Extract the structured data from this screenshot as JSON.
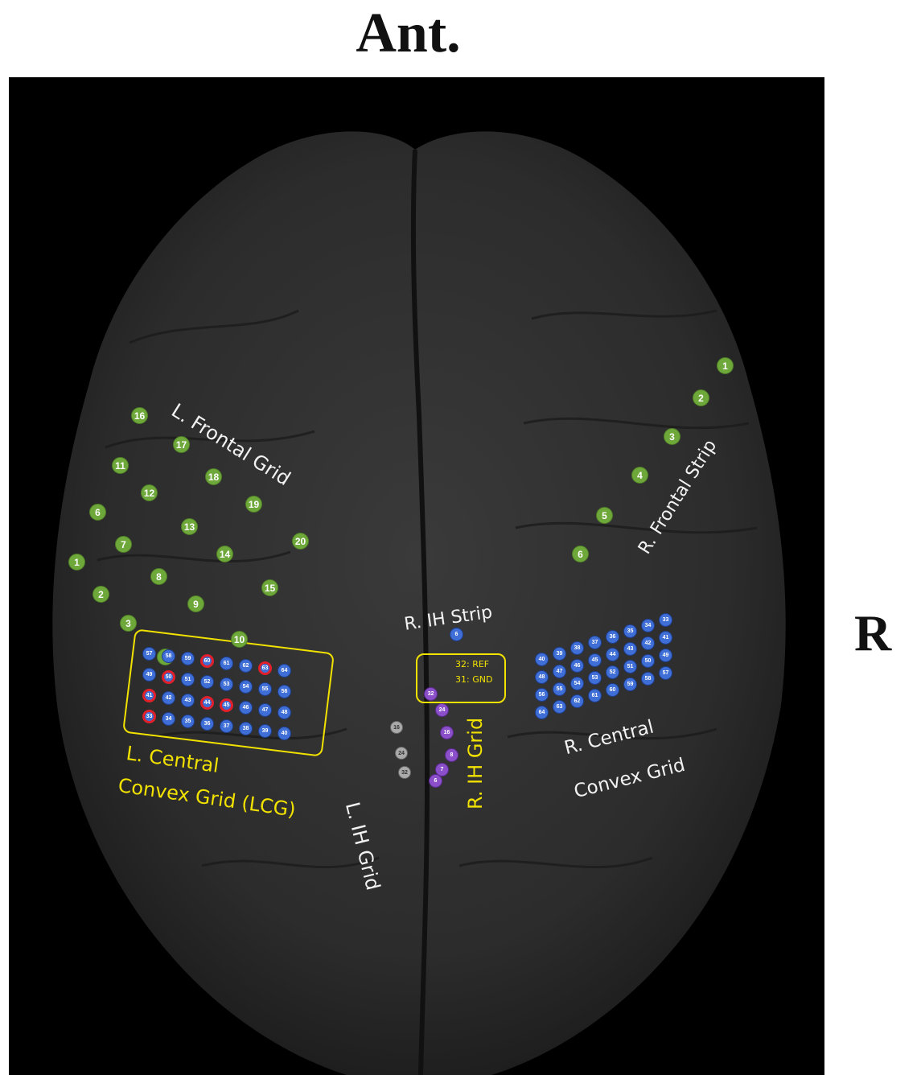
{
  "headings": {
    "anterior": "Ant.",
    "side": "R"
  },
  "labels": {
    "l_frontal_grid": "L. Frontal Grid",
    "r_frontal_strip": "R. Frontal Strip",
    "r_ih_strip": "R. IH Strip",
    "l_ih_grid": "L. IH Grid",
    "r_ih_grid": "R. IH Grid",
    "l_central_line1": "L. Central",
    "l_central_line2": "Convex Grid (LCG)",
    "r_central_line1": "R. Central",
    "r_central_line2": "Convex Grid",
    "ref": "32: REF",
    "gnd": "31: GND"
  },
  "colors": {
    "background": "#000000",
    "brain": "#2e2e2e",
    "yellow": "#f2e200",
    "green_electrode": "#6ea83a",
    "blue_electrode": "#3f6fd6",
    "purple_electrode": "#8a4fc9",
    "highlight_ring": "#e0202a"
  },
  "electrodes": {
    "l_frontal_grid": [
      "16",
      "17",
      "11",
      "18",
      "12",
      "19",
      "6",
      "13",
      "20",
      "7",
      "14",
      "1",
      "8",
      "15",
      "2",
      "9",
      "3",
      "10",
      "4"
    ],
    "r_frontal_strip": [
      "1",
      "2",
      "3",
      "4",
      "5",
      "6"
    ],
    "r_ih_strip": [
      "6"
    ],
    "l_central_convex_grid": [
      "57",
      "58",
      "59",
      "60",
      "61",
      "62",
      "63",
      "64",
      "49",
      "50",
      "51",
      "52",
      "53",
      "54",
      "55",
      "56",
      "41",
      "42",
      "43",
      "44",
      "45",
      "46",
      "47",
      "48",
      "33",
      "34",
      "35",
      "36",
      "37",
      "38",
      "39",
      "40"
    ],
    "l_central_highlighted": [
      "60",
      "50",
      "63",
      "41",
      "44",
      "45",
      "33"
    ],
    "r_ih_grid": [
      "32",
      "24",
      "16",
      "8",
      "7",
      "6"
    ],
    "l_ih_grid": [
      "16",
      "24",
      "32"
    ],
    "r_central_convex_grid": [
      "33",
      "34",
      "35",
      "36",
      "37",
      "38",
      "39",
      "40",
      "41",
      "42",
      "43",
      "44",
      "45",
      "46",
      "47",
      "48",
      "49",
      "50",
      "51",
      "52",
      "53",
      "54",
      "55",
      "56",
      "57",
      "58",
      "59",
      "60",
      "61",
      "62",
      "63",
      "64"
    ]
  }
}
